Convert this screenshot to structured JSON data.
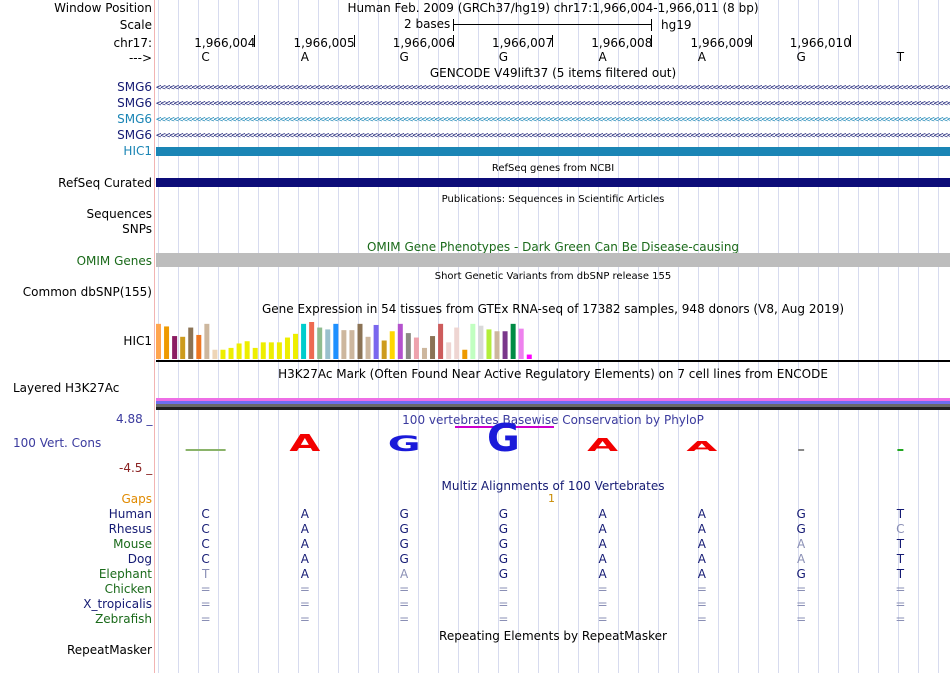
{
  "header": {
    "window_position_label": "Window Position",
    "window_position_value": "Human Feb. 2009 (GRCh37/hg19)   chr17:1,966,004-1,966,011 (8 bp)",
    "scale_label": "Scale",
    "scale_value": "2 bases",
    "assembly": "hg19",
    "chrom_label": "chr17:",
    "strand_label": "--->",
    "positions": [
      "1,966,004",
      "1,966,005",
      "1,966,006",
      "1,966,007",
      "1,966,008",
      "1,966,009",
      "1,966,010"
    ],
    "sequence": [
      "C",
      "A",
      "G",
      "G",
      "A",
      "A",
      "G",
      "T"
    ]
  },
  "gencode": {
    "title": "GENCODE V49lift37 (5 items filtered out)",
    "items": [
      {
        "label": "SMG6",
        "color": "#141a73"
      },
      {
        "label": "SMG6",
        "color": "#141a73"
      },
      {
        "label": "SMG6",
        "color": "#1a85b5"
      },
      {
        "label": "SMG6",
        "color": "#141a73"
      },
      {
        "label": "HIC1",
        "color": "#1a85b5"
      }
    ]
  },
  "refseq": {
    "title": "RefSeq genes from NCBI",
    "label": "RefSeq Curated",
    "color": "#0c0c78"
  },
  "publications": {
    "title": "Publications: Sequences in Scientific Articles",
    "label_sequences": "Sequences",
    "label_snps": "SNPs"
  },
  "omim": {
    "title": "OMIM Gene Phenotypes - Dark Green Can Be Disease-causing",
    "label": "OMIM Genes",
    "color": "#1a6a1a",
    "bar_color": "#bdbdbd"
  },
  "dbsnp": {
    "title": "Short Genetic Variants from dbSNP release 155",
    "label": "Common dbSNP(155)"
  },
  "gtex": {
    "title": "Gene Expression in 54 tissues from GTEx RNA-seq of 17382 samples, 948 donors (V8, Aug 2019)",
    "label": "HIC1",
    "bars": [
      {
        "v": 0.95,
        "c": "#ffa54f"
      },
      {
        "v": 0.88,
        "c": "#ee9a00"
      },
      {
        "v": 0.62,
        "c": "#8b1c62"
      },
      {
        "v": 0.6,
        "c": "#cd9b1d"
      },
      {
        "v": 0.85,
        "c": "#8b7355"
      },
      {
        "v": 0.65,
        "c": "#ee7621"
      },
      {
        "v": 0.95,
        "c": "#cdb79e"
      },
      {
        "v": 0.25,
        "c": "#eed5b7"
      },
      {
        "v": 0.25,
        "c": "#eeee00"
      },
      {
        "v": 0.3,
        "c": "#eeee00"
      },
      {
        "v": 0.42,
        "c": "#eeee00"
      },
      {
        "v": 0.48,
        "c": "#eeee00"
      },
      {
        "v": 0.3,
        "c": "#eeee00"
      },
      {
        "v": 0.45,
        "c": "#eeee00"
      },
      {
        "v": 0.45,
        "c": "#eeee00"
      },
      {
        "v": 0.45,
        "c": "#eeee00"
      },
      {
        "v": 0.58,
        "c": "#eeee00"
      },
      {
        "v": 0.68,
        "c": "#eeee00"
      },
      {
        "v": 0.95,
        "c": "#00cdcd"
      },
      {
        "v": 1.0,
        "c": "#ee6a50"
      },
      {
        "v": 0.85,
        "c": "#8fbc8f"
      },
      {
        "v": 0.8,
        "c": "#9ac0cd"
      },
      {
        "v": 0.95,
        "c": "#1e90ff"
      },
      {
        "v": 0.78,
        "c": "#cdb79e"
      },
      {
        "v": 0.78,
        "c": "#cdb79e"
      },
      {
        "v": 0.95,
        "c": "#8b7355"
      },
      {
        "v": 0.6,
        "c": "#cdb79e"
      },
      {
        "v": 0.92,
        "c": "#7a67ee"
      },
      {
        "v": 0.5,
        "c": "#cd9b1d"
      },
      {
        "v": 0.75,
        "c": "#ffd700"
      },
      {
        "v": 0.95,
        "c": "#b452cd"
      },
      {
        "v": 0.7,
        "c": "#8b8b83"
      },
      {
        "v": 0.58,
        "c": "#eea2ad"
      },
      {
        "v": 0.3,
        "c": "#cdb79e"
      },
      {
        "v": 0.62,
        "c": "#8b7355"
      },
      {
        "v": 0.95,
        "c": "#cd5c5c"
      },
      {
        "v": 0.45,
        "c": "#eed5d2"
      },
      {
        "v": 0.85,
        "c": "#eed5d2"
      },
      {
        "v": 0.25,
        "c": "#ee9a00"
      },
      {
        "v": 0.95,
        "c": "#c1ffc1"
      },
      {
        "v": 0.9,
        "c": "#d9d9d9"
      },
      {
        "v": 0.8,
        "c": "#b3ee3a"
      },
      {
        "v": 0.75,
        "c": "#cdb79e"
      },
      {
        "v": 0.75,
        "c": "#7a378b"
      },
      {
        "v": 0.95,
        "c": "#008b45"
      },
      {
        "v": 0.82,
        "c": "#ee82ee"
      },
      {
        "v": 0.12,
        "c": "#ff00ff"
      }
    ]
  },
  "h3k27ac": {
    "title": "H3K27Ac Mark (Often Found Near Active Regulatory Elements) on 7 cell lines from ENCODE",
    "label": "Layered H3K27Ac",
    "bands": [
      "#ee6ee6",
      "#6e6ef0",
      "#6a6a6a",
      "#202020"
    ]
  },
  "phylop": {
    "title": "100 vertebrates Basewise Conservation by PhyloP",
    "label": "100 Vert. Cons",
    "max": "4.88 _",
    "min": "-4.5 _",
    "scores": [
      0.05,
      0.6,
      0.55,
      1.0,
      0.45,
      0.35,
      0.0,
      0.03
    ],
    "letter_colors": [
      "#8ab36a",
      "#f20000",
      "#1a1ad9",
      "#1a1ad9",
      "#f20000",
      "#f20000",
      "#8a8a8a",
      "#21a621"
    ]
  },
  "multiz": {
    "title": "Multiz Alignments of 100 Vertebrates",
    "gaps_label": "Gaps",
    "gap_marker": "1",
    "species": [
      {
        "name": "Human",
        "color": "#141a73",
        "seq": [
          "C",
          "A",
          "G",
          "G",
          "A",
          "A",
          "G",
          "T"
        ]
      },
      {
        "name": "Rhesus",
        "color": "#141a73",
        "seq": [
          "C",
          "A",
          "G",
          "G",
          "A",
          "A",
          "G",
          "C"
        ]
      },
      {
        "name": "Mouse",
        "color": "#1a6a1a",
        "seq": [
          "C",
          "A",
          "G",
          "G",
          "A",
          "A",
          "A",
          "T"
        ]
      },
      {
        "name": "Dog",
        "color": "#141a73",
        "seq": [
          "C",
          "A",
          "G",
          "G",
          "A",
          "A",
          "A",
          "T"
        ]
      },
      {
        "name": "Elephant",
        "color": "#1a6a1a",
        "seq": [
          "T",
          "A",
          "A",
          "G",
          "A",
          "A",
          "G",
          "T"
        ]
      },
      {
        "name": "Chicken",
        "color": "#1a6a1a",
        "seq": [
          "=",
          "=",
          "=",
          "=",
          "=",
          "=",
          "=",
          "="
        ]
      },
      {
        "name": "X_tropicalis",
        "color": "#141a73",
        "seq": [
          "=",
          "=",
          "=",
          "=",
          "=",
          "=",
          "=",
          "="
        ]
      },
      {
        "name": "Zebrafish",
        "color": "#1a6a1a",
        "seq": [
          "=",
          "=",
          "=",
          "=",
          "=",
          "=",
          "=",
          "="
        ]
      }
    ],
    "faded": [
      [],
      [
        7
      ],
      [
        6
      ],
      [
        6
      ],
      [
        0,
        2
      ],
      [],
      [],
      []
    ]
  },
  "repeatmasker": {
    "title": "Repeating Elements by RepeatMasker",
    "label": "RepeatMasker"
  }
}
